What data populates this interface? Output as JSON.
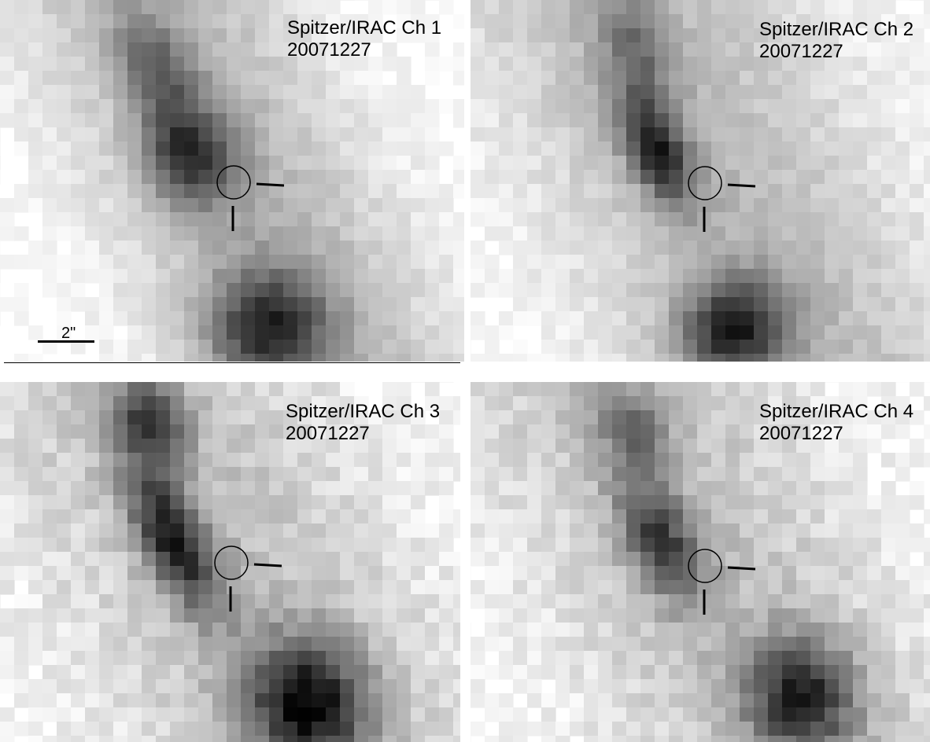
{
  "panels": [
    {
      "id": "ch1",
      "title": "Spitzer/IRAC Ch 1",
      "date": "20071227"
    },
    {
      "id": "ch2",
      "title": "Spitzer/IRAC Ch 2",
      "date": "20071227"
    },
    {
      "id": "ch3",
      "title": "Spitzer/IRAC Ch 3",
      "date": "20071227"
    },
    {
      "id": "ch4",
      "title": "Spitzer/IRAC Ch 4",
      "date": "20071227"
    }
  ],
  "scale_bar": {
    "label": "2\""
  },
  "colors": {
    "ink": "#000000",
    "background": "#ffffff"
  },
  "colormap": "grayscale-inverted"
}
